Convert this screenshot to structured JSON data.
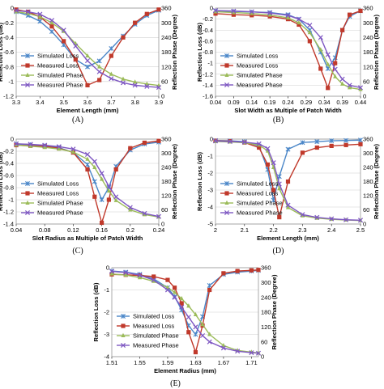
{
  "style": {
    "simulated_loss_color": "#4a86c8",
    "measured_loss_color": "#c0392b",
    "simulated_phase_color": "#9bbb59",
    "measured_phase_color": "#7e57c2"
  },
  "chart_data": [
    {
      "id": "A",
      "type": "line",
      "caption": "(A)",
      "xlabel": "Element Length (mm)",
      "ylabel_left": "Reflection Loss (dB)",
      "ylabel_right": "Reflection Phase (Degree)",
      "xlim": [
        3.3,
        3.9
      ],
      "ylim_left": [
        -1.2,
        0
      ],
      "ylim_right": [
        0,
        360
      ],
      "xticks": [
        "3.3",
        "3.4",
        "3.5",
        "3.6",
        "3.7",
        "3.8",
        "3.9"
      ],
      "yticks_left": [
        "0",
        "-0.2",
        "-0.4",
        "-0.6",
        "-0.8",
        "-1",
        "-1.2"
      ],
      "yticks_right": [
        "360",
        "300",
        "240",
        "180",
        "120",
        "60",
        "0"
      ],
      "legend": [
        "Simulated Loss",
        "Measured Loss",
        "Simulated Phase",
        "Measured Phase"
      ],
      "series": [
        {
          "name": "Simulated Loss",
          "axis": "left",
          "marker": "star",
          "x": [
            3.3,
            3.35,
            3.4,
            3.45,
            3.5,
            3.55,
            3.6,
            3.65,
            3.7,
            3.75,
            3.8,
            3.85,
            3.9
          ],
          "y": [
            -0.05,
            -0.1,
            -0.18,
            -0.32,
            -0.5,
            -0.7,
            -0.8,
            -0.72,
            -0.55,
            -0.38,
            -0.22,
            -0.1,
            -0.03
          ]
        },
        {
          "name": "Measured Loss",
          "axis": "left",
          "marker": "square",
          "x": [
            3.3,
            3.35,
            3.4,
            3.45,
            3.5,
            3.55,
            3.6,
            3.65,
            3.7,
            3.75,
            3.8,
            3.85,
            3.9
          ],
          "y": [
            -0.02,
            -0.05,
            -0.12,
            -0.25,
            -0.45,
            -0.7,
            -1.05,
            -0.98,
            -0.65,
            -0.4,
            -0.2,
            -0.08,
            -0.02
          ]
        },
        {
          "name": "Simulated Phase",
          "axis": "right",
          "marker": "triangle",
          "x": [
            3.3,
            3.35,
            3.4,
            3.45,
            3.5,
            3.55,
            3.6,
            3.65,
            3.7,
            3.75,
            3.8,
            3.85,
            3.9
          ],
          "y": [
            345,
            338,
            325,
            300,
            265,
            215,
            165,
            120,
            90,
            70,
            58,
            50,
            44
          ]
        },
        {
          "name": "Measured Phase",
          "axis": "right",
          "marker": "x",
          "x": [
            3.3,
            3.35,
            3.4,
            3.45,
            3.5,
            3.55,
            3.6,
            3.65,
            3.7,
            3.75,
            3.8,
            3.85,
            3.9
          ],
          "y": [
            350,
            345,
            335,
            310,
            270,
            205,
            145,
            100,
            72,
            55,
            45,
            40,
            36
          ]
        }
      ]
    },
    {
      "id": "B",
      "type": "line",
      "caption": "(B)",
      "xlabel": "Slot Width as Multiple of Patch Width",
      "ylabel_left": "Reflection Loss (dB)",
      "ylabel_right": "Reflection Phase (Degree)",
      "xlim": [
        0.04,
        0.44
      ],
      "ylim_left": [
        -1.6,
        0
      ],
      "ylim_right": [
        0,
        360
      ],
      "xticks": [
        "0.04",
        "0.09",
        "0.14",
        "0.19",
        "0.24",
        "0.29",
        "0.34",
        "0.39",
        "0.44"
      ],
      "yticks_left": [
        "0",
        "-0.2",
        "-0.4",
        "-0.6",
        "-0.8",
        "-1",
        "-1.2",
        "-1.4",
        "-1.6"
      ],
      "yticks_right": [
        "360",
        "300",
        "240",
        "180",
        "120",
        "60",
        "0"
      ],
      "legend": [
        "Simulated Loss",
        "Measured Loss",
        "Simulated Phase",
        "Measured Phase"
      ],
      "series": [
        {
          "name": "Simulated Loss",
          "axis": "left",
          "marker": "star",
          "x": [
            0.04,
            0.09,
            0.14,
            0.19,
            0.24,
            0.27,
            0.3,
            0.33,
            0.35,
            0.37,
            0.39,
            0.41,
            0.44
          ],
          "y": [
            -0.05,
            -0.06,
            -0.07,
            -0.08,
            -0.12,
            -0.2,
            -0.4,
            -0.8,
            -1.1,
            -0.9,
            -0.4,
            -0.15,
            -0.05
          ]
        },
        {
          "name": "Measured Loss",
          "axis": "left",
          "marker": "square",
          "x": [
            0.04,
            0.09,
            0.14,
            0.19,
            0.24,
            0.27,
            0.3,
            0.33,
            0.35,
            0.37,
            0.39,
            0.41,
            0.44
          ],
          "y": [
            -0.1,
            -0.12,
            -0.13,
            -0.15,
            -0.2,
            -0.3,
            -0.6,
            -1.1,
            -1.45,
            -1.0,
            -0.4,
            -0.12,
            -0.05
          ]
        },
        {
          "name": "Simulated Phase",
          "axis": "right",
          "marker": "triangle",
          "x": [
            0.04,
            0.09,
            0.14,
            0.19,
            0.24,
            0.27,
            0.3,
            0.33,
            0.35,
            0.37,
            0.39,
            0.41,
            0.44
          ],
          "y": [
            345,
            342,
            338,
            332,
            320,
            300,
            260,
            190,
            130,
            80,
            50,
            35,
            28
          ]
        },
        {
          "name": "Measured Phase",
          "axis": "right",
          "marker": "x",
          "x": [
            0.04,
            0.09,
            0.14,
            0.19,
            0.24,
            0.27,
            0.3,
            0.33,
            0.35,
            0.37,
            0.39,
            0.41,
            0.44
          ],
          "y": [
            350,
            348,
            345,
            340,
            330,
            315,
            290,
            240,
            170,
            110,
            70,
            45,
            35
          ]
        }
      ]
    },
    {
      "id": "C",
      "type": "line",
      "caption": "(C)",
      "xlabel": "Slot Radius as Multiple of Patch Width",
      "ylabel_left": "Reflection Loss (dB)",
      "ylabel_right": "Reflection Phase (Degree)",
      "xlim": [
        0.04,
        0.24
      ],
      "ylim_left": [
        -1.4,
        0
      ],
      "ylim_right": [
        0,
        360
      ],
      "xticks": [
        "0.04",
        "0.08",
        "0.12",
        "0.16",
        "0.2",
        "0.24"
      ],
      "yticks_left": [
        "0",
        "-0.2",
        "-0.4",
        "-0.6",
        "-0.8",
        "-1",
        "-1.2",
        "-1.4"
      ],
      "yticks_right": [
        "360",
        "300",
        "240",
        "180",
        "120",
        "60",
        "0"
      ],
      "legend": [
        "Simulated Loss",
        "Measured Loss",
        "Simulated Phase",
        "Measured Phase"
      ],
      "series": [
        {
          "name": "Simulated Loss",
          "axis": "left",
          "marker": "star",
          "x": [
            0.04,
            0.06,
            0.08,
            0.1,
            0.12,
            0.14,
            0.15,
            0.16,
            0.17,
            0.18,
            0.2,
            0.22,
            0.24
          ],
          "y": [
            -0.08,
            -0.09,
            -0.11,
            -0.14,
            -0.22,
            -0.42,
            -0.7,
            -1.0,
            -0.8,
            -0.45,
            -0.18,
            -0.08,
            -0.05
          ]
        },
        {
          "name": "Measured Loss",
          "axis": "left",
          "marker": "square",
          "x": [
            0.04,
            0.06,
            0.08,
            0.1,
            0.12,
            0.14,
            0.15,
            0.16,
            0.17,
            0.18,
            0.2,
            0.22,
            0.24
          ],
          "y": [
            -0.1,
            -0.11,
            -0.12,
            -0.15,
            -0.22,
            -0.5,
            -0.95,
            -1.38,
            -1.0,
            -0.5,
            -0.15,
            -0.06,
            -0.03
          ]
        },
        {
          "name": "Simulated Phase",
          "axis": "right",
          "marker": "triangle",
          "x": [
            0.04,
            0.06,
            0.08,
            0.1,
            0.12,
            0.14,
            0.15,
            0.16,
            0.17,
            0.18,
            0.2,
            0.22,
            0.24
          ],
          "y": [
            335,
            330,
            325,
            318,
            305,
            275,
            240,
            190,
            140,
            100,
            60,
            40,
            30
          ]
        },
        {
          "name": "Measured Phase",
          "axis": "right",
          "marker": "x",
          "x": [
            0.04,
            0.06,
            0.08,
            0.1,
            0.12,
            0.14,
            0.15,
            0.16,
            0.17,
            0.18,
            0.2,
            0.22,
            0.24
          ],
          "y": [
            340,
            338,
            334,
            328,
            318,
            295,
            265,
            215,
            160,
            115,
            70,
            45,
            32
          ]
        }
      ]
    },
    {
      "id": "D",
      "type": "line",
      "caption": "(D)",
      "xlabel": "Element Length (mm)",
      "ylabel_left": "Reflection Loss (dB)",
      "ylabel_right": "Reflection Phase (Degree)",
      "xlim": [
        2.0,
        2.5
      ],
      "ylim_left": [
        -5,
        0
      ],
      "ylim_right": [
        0,
        360
      ],
      "xticks": [
        "2",
        "2.1",
        "2.2",
        "2.3",
        "2.4",
        "2.5"
      ],
      "yticks_left": [
        "0",
        "-1",
        "-2",
        "-3",
        "-4",
        "-5"
      ],
      "yticks_right": [
        "360",
        "300",
        "240",
        "180",
        "120",
        "60",
        "0"
      ],
      "legend": [
        "Simulated Loss",
        "Measured Loss",
        "Simulated Phase",
        "Measured Phase"
      ],
      "series": [
        {
          "name": "Simulated Loss",
          "axis": "left",
          "marker": "star",
          "x": [
            2.0,
            2.05,
            2.1,
            2.15,
            2.18,
            2.2,
            2.22,
            2.25,
            2.3,
            2.35,
            2.4,
            2.45,
            2.5
          ],
          "y": [
            -0.08,
            -0.1,
            -0.15,
            -0.4,
            -1.8,
            -3.6,
            -2.2,
            -0.6,
            -0.2,
            -0.15,
            -0.1,
            -0.08,
            -0.06
          ]
        },
        {
          "name": "Measured Loss",
          "axis": "left",
          "marker": "square",
          "x": [
            2.0,
            2.05,
            2.1,
            2.15,
            2.18,
            2.2,
            2.22,
            2.25,
            2.3,
            2.35,
            2.4,
            2.45,
            2.5
          ],
          "y": [
            -0.1,
            -0.12,
            -0.2,
            -0.5,
            -1.5,
            -3.0,
            -4.6,
            -2.5,
            -0.8,
            -0.5,
            -0.4,
            -0.35,
            -0.3
          ]
        },
        {
          "name": "Simulated Phase",
          "axis": "right",
          "marker": "triangle",
          "x": [
            2.0,
            2.05,
            2.1,
            2.15,
            2.18,
            2.2,
            2.22,
            2.25,
            2.3,
            2.35,
            2.4,
            2.45,
            2.5
          ],
          "y": [
            350,
            348,
            345,
            335,
            310,
            240,
            150,
            70,
            35,
            25,
            20,
            17,
            15
          ]
        },
        {
          "name": "Measured Phase",
          "axis": "right",
          "marker": "x",
          "x": [
            2.0,
            2.05,
            2.1,
            2.15,
            2.18,
            2.2,
            2.22,
            2.25,
            2.3,
            2.35,
            2.4,
            2.45,
            2.5
          ],
          "y": [
            352,
            350,
            347,
            340,
            320,
            260,
            170,
            80,
            40,
            28,
            22,
            18,
            16
          ]
        }
      ]
    },
    {
      "id": "E",
      "type": "line",
      "caption": "(E)",
      "xlabel": "Element Radius (mm)",
      "ylabel_left": "Reflection Loss (dB)",
      "ylabel_right": "Reflection Phase (Degree)",
      "xlim": [
        1.51,
        1.72
      ],
      "ylim_left": [
        -4,
        0
      ],
      "ylim_right": [
        0,
        360
      ],
      "xticks": [
        "1.51",
        "1.55",
        "1.59",
        "1.63",
        "1.67",
        "1.71"
      ],
      "yticks_left": [
        "0",
        "-1",
        "-2",
        "-3",
        "-4"
      ],
      "yticks_right": [
        "360",
        "300",
        "240",
        "180",
        "120",
        "60",
        "0"
      ],
      "legend": [
        "Simulated Loss",
        "Measured Loss",
        "Simulated Phase",
        "Measured Phase"
      ],
      "series": [
        {
          "name": "Simulated Loss",
          "axis": "left",
          "marker": "star",
          "x": [
            1.51,
            1.53,
            1.55,
            1.57,
            1.59,
            1.6,
            1.61,
            1.62,
            1.63,
            1.64,
            1.65,
            1.67,
            1.69,
            1.71,
            1.72
          ],
          "y": [
            -0.15,
            -0.2,
            -0.3,
            -0.5,
            -0.9,
            -1.3,
            -1.9,
            -2.6,
            -3.0,
            -2.2,
            -0.8,
            -0.3,
            -0.2,
            -0.15,
            -0.12
          ]
        },
        {
          "name": "Measured Loss",
          "axis": "left",
          "marker": "square",
          "x": [
            1.51,
            1.53,
            1.55,
            1.57,
            1.59,
            1.6,
            1.61,
            1.62,
            1.63,
            1.64,
            1.65,
            1.67,
            1.69,
            1.71,
            1.72
          ],
          "y": [
            -0.3,
            -0.32,
            -0.35,
            -0.4,
            -0.55,
            -0.9,
            -1.6,
            -2.9,
            -3.8,
            -2.6,
            -1.0,
            -0.25,
            -0.15,
            -0.12,
            -0.1
          ]
        },
        {
          "name": "Simulated Phase",
          "axis": "right",
          "marker": "triangle",
          "x": [
            1.51,
            1.53,
            1.55,
            1.57,
            1.59,
            1.6,
            1.61,
            1.62,
            1.63,
            1.64,
            1.65,
            1.67,
            1.69,
            1.71,
            1.72
          ],
          "y": [
            335,
            330,
            320,
            305,
            280,
            260,
            235,
            205,
            170,
            130,
            90,
            45,
            25,
            18,
            15
          ]
        },
        {
          "name": "Measured Phase",
          "axis": "right",
          "marker": "x",
          "x": [
            1.51,
            1.53,
            1.55,
            1.57,
            1.59,
            1.6,
            1.61,
            1.62,
            1.63,
            1.64,
            1.65,
            1.67,
            1.69,
            1.71,
            1.72
          ],
          "y": [
            345,
            340,
            330,
            310,
            270,
            240,
            200,
            160,
            120,
            85,
            60,
            35,
            22,
            16,
            14
          ]
        }
      ]
    }
  ]
}
